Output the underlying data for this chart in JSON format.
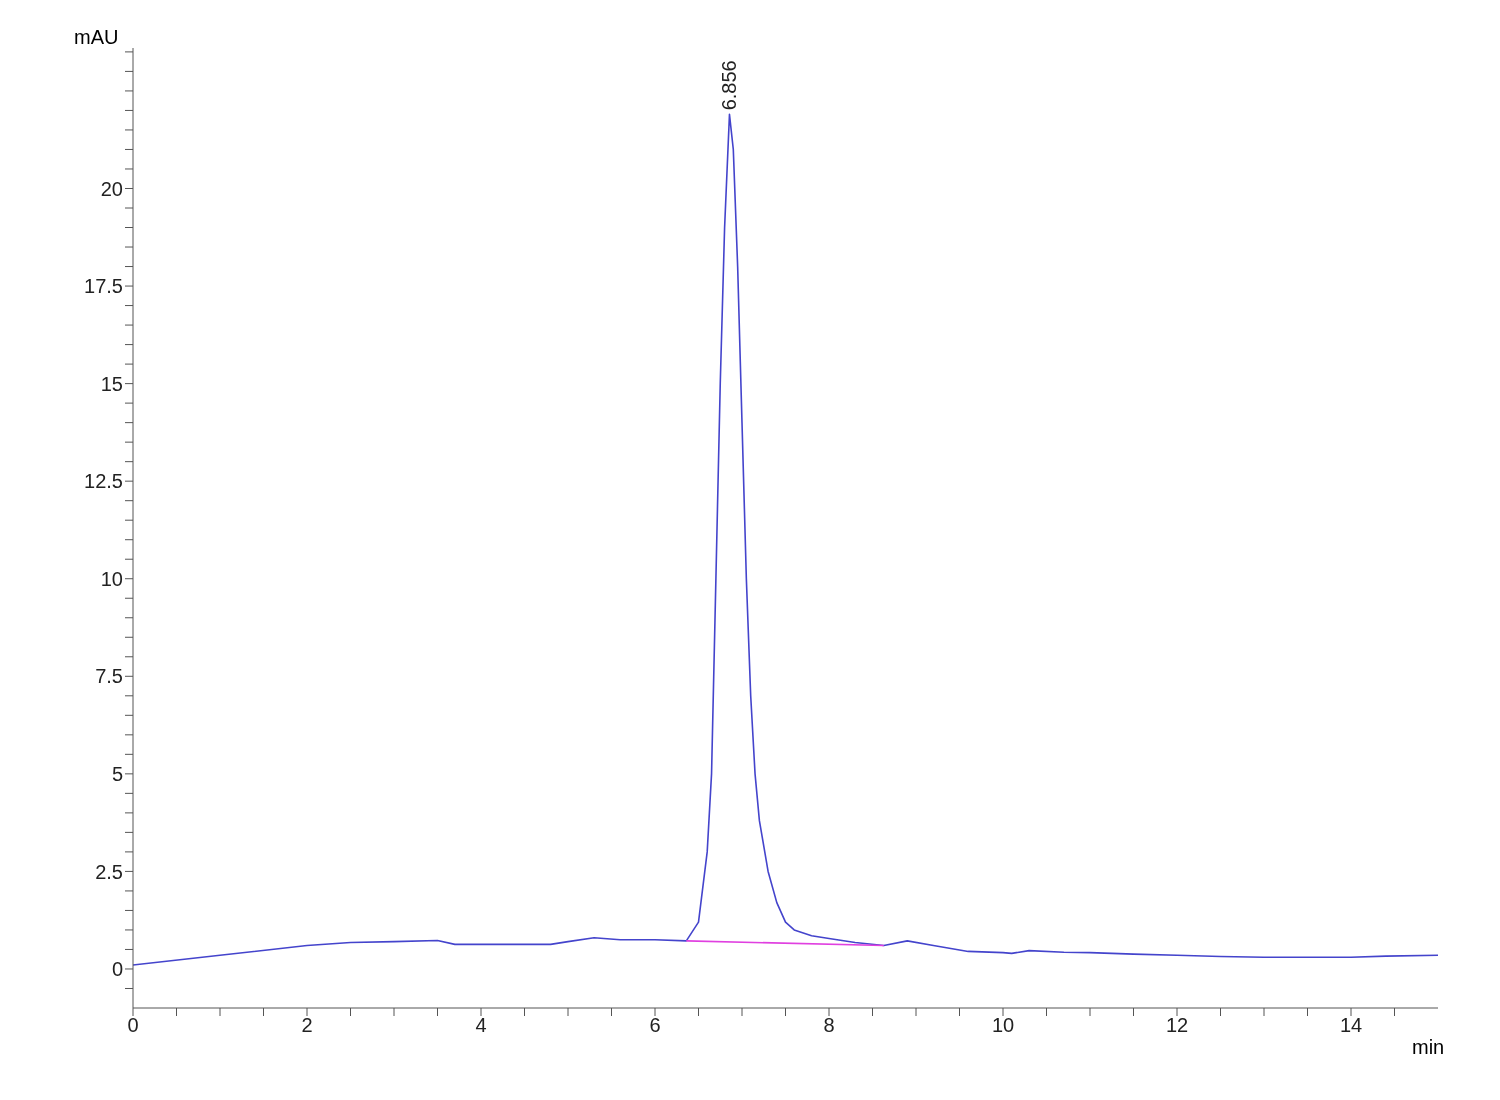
{
  "chart_data": {
    "type": "line",
    "xlabel": "min",
    "ylabel": "mAU",
    "xlim": [
      0,
      15
    ],
    "ylim": [
      -1,
      23.6
    ],
    "xticks": [
      0,
      {
        "value": 0.5,
        "label": null
      },
      {
        "value": 1,
        "label": null
      },
      {
        "value": 1.5,
        "label": null
      },
      2,
      {
        "value": 2.5,
        "label": null
      },
      {
        "value": 3,
        "label": null
      },
      {
        "value": 3.5,
        "label": null
      },
      4,
      {
        "value": 4.5,
        "label": null
      },
      {
        "value": 5,
        "label": null
      },
      {
        "value": 5.5,
        "label": null
      },
      6,
      {
        "value": 6.5,
        "label": null
      },
      {
        "value": 7,
        "label": null
      },
      {
        "value": 7.5,
        "label": null
      },
      8,
      {
        "value": 8.5,
        "label": null
      },
      {
        "value": 9,
        "label": null
      },
      {
        "value": 9.5,
        "label": null
      },
      10,
      {
        "value": 10.5,
        "label": null
      },
      {
        "value": 11,
        "label": null
      },
      {
        "value": 11.5,
        "label": null
      },
      12,
      {
        "value": 12.5,
        "label": null
      },
      {
        "value": 13,
        "label": null
      },
      {
        "value": 13.5,
        "label": null
      },
      14,
      {
        "value": 14.5,
        "label": null
      }
    ],
    "yticks": [
      {
        "value": -0.5,
        "label": null
      },
      0,
      {
        "value": 0.5,
        "label": null
      },
      {
        "value": 1,
        "label": null
      },
      {
        "value": 1.5,
        "label": null
      },
      {
        "value": 2,
        "label": null
      },
      2.5,
      {
        "value": 3,
        "label": null
      },
      {
        "value": 3.5,
        "label": null
      },
      {
        "value": 4,
        "label": null
      },
      {
        "value": 4.5,
        "label": null
      },
      5,
      {
        "value": 5.5,
        "label": null
      },
      {
        "value": 6,
        "label": null
      },
      {
        "value": 6.5,
        "label": null
      },
      {
        "value": 7,
        "label": null
      },
      7.5,
      {
        "value": 8,
        "label": null
      },
      {
        "value": 8.5,
        "label": null
      },
      {
        "value": 9,
        "label": null
      },
      {
        "value": 9.5,
        "label": null
      },
      10,
      {
        "value": 10.5,
        "label": null
      },
      {
        "value": 11,
        "label": null
      },
      {
        "value": 11.5,
        "label": null
      },
      {
        "value": 12,
        "label": null
      },
      12.5,
      {
        "value": 13,
        "label": null
      },
      {
        "value": 13.5,
        "label": null
      },
      {
        "value": 14,
        "label": null
      },
      {
        "value": 14.5,
        "label": null
      },
      15,
      {
        "value": 15.5,
        "label": null
      },
      {
        "value": 16,
        "label": null
      },
      {
        "value": 16.5,
        "label": null
      },
      {
        "value": 17,
        "label": null
      },
      17.5,
      {
        "value": 18,
        "label": null
      },
      {
        "value": 18.5,
        "label": null
      },
      {
        "value": 19,
        "label": null
      },
      {
        "value": 19.5,
        "label": null
      },
      20,
      {
        "value": 20.5,
        "label": null
      },
      {
        "value": 21,
        "label": null
      },
      {
        "value": 21.5,
        "label": null
      },
      {
        "value": 22,
        "label": null
      },
      {
        "value": 22.5,
        "label": null
      },
      {
        "value": 23,
        "label": null
      },
      {
        "value": 23.5,
        "label": null
      }
    ],
    "marker": "none",
    "line_style": "solid",
    "annotations": [
      {
        "text": "6.856",
        "x": 6.856,
        "y": 21.9
      }
    ],
    "series": [
      {
        "color": "#4444cc",
        "x": [
          0,
          1,
          2,
          2.5,
          3,
          3.5,
          3.7,
          4.8,
          5.0,
          5.3,
          5.6,
          6.0,
          6.36,
          6.5,
          6.6,
          6.65,
          6.7,
          6.75,
          6.8,
          6.856,
          6.9,
          6.95,
          7.0,
          7.05,
          7.1,
          7.15,
          7.2,
          7.3,
          7.4,
          7.5,
          7.6,
          7.8,
          8.0,
          8.3,
          8.63,
          8.9,
          9.2,
          9.6,
          10.0,
          10.1,
          10.3,
          10.7,
          11.0,
          11.5,
          12.0,
          12.5,
          13.0,
          14.0,
          14.4,
          15
        ],
        "values": [
          0.1,
          0.35,
          0.6,
          0.68,
          0.7,
          0.73,
          0.63,
          0.63,
          0.7,
          0.8,
          0.75,
          0.75,
          0.72,
          1.2,
          3,
          5,
          10,
          15,
          19,
          21.9,
          21,
          18,
          14,
          10,
          7,
          5,
          3.8,
          2.5,
          1.7,
          1.2,
          1.0,
          0.85,
          0.78,
          0.68,
          0.6,
          0.72,
          0.6,
          0.45,
          0.42,
          0.4,
          0.47,
          0.43,
          0.42,
          0.38,
          0.35,
          0.32,
          0.3,
          0.3,
          0.33,
          0.35
        ]
      },
      {
        "color": "#e040e0",
        "x": [
          6.36,
          8.63
        ],
        "values": [
          0.72,
          0.6
        ]
      }
    ]
  }
}
